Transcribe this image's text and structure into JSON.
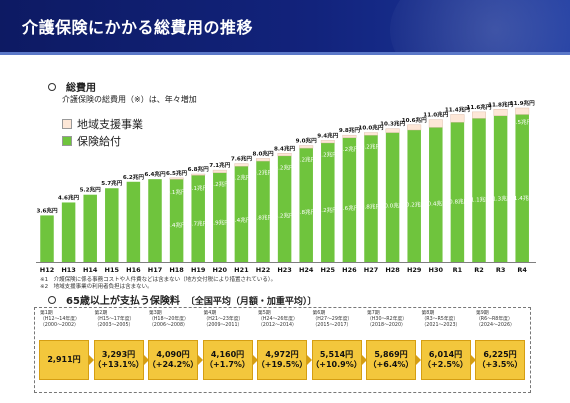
{
  "page_title": "介護保険にかかる総費用の推移",
  "section1": {
    "title": "総費用",
    "subtitle": "介護保険の総費用（※）は、年々増加"
  },
  "legend": [
    {
      "label": "地域支援事業",
      "color": "#fde7d7"
    },
    {
      "label": "保険給付",
      "color": "#6fc43d"
    }
  ],
  "chart_data": {
    "type": "bar",
    "stacked": true,
    "categories": [
      "H12",
      "H13",
      "H14",
      "H15",
      "H16",
      "H17",
      "H18",
      "H19",
      "H20",
      "H21",
      "H22",
      "H23",
      "H24",
      "H25",
      "H26",
      "H27",
      "H28",
      "H29",
      "H30",
      "R1",
      "R2",
      "R3",
      "R4"
    ],
    "total_labels": [
      "3.6兆円",
      "4.6兆円",
      "5.2兆円",
      "5.7兆円",
      "6.2兆円",
      "6.4兆円",
      "6.5兆円",
      "6.8兆円",
      "7.1兆円",
      "7.6兆円",
      "8.0兆円",
      "8.4兆円",
      "9.0兆円",
      "9.4兆円",
      "9.8兆円",
      "10.0兆円",
      "10.3兆円",
      "10.6兆円",
      "11.0兆円",
      "11.4兆円",
      "11.6兆円",
      "11.8兆円",
      "11.9兆円"
    ],
    "series": [
      {
        "name": "保険給付",
        "color": "#6fc43d",
        "values": [
          3.6,
          4.6,
          5.2,
          5.7,
          6.2,
          6.4,
          6.4,
          6.7,
          6.9,
          7.4,
          7.8,
          8.2,
          8.8,
          9.2,
          9.6,
          9.8,
          10.0,
          10.2,
          10.4,
          10.8,
          11.1,
          11.3,
          11.4
        ]
      },
      {
        "name": "地域支援事業",
        "color": "#fde7d7",
        "values": [
          0,
          0,
          0,
          0,
          0,
          0,
          0.1,
          0.1,
          0.2,
          0.2,
          0.2,
          0.2,
          0.2,
          0.2,
          0.2,
          0.2,
          0.3,
          0.4,
          0.6,
          0.6,
          0.5,
          0.5,
          0.5
        ]
      }
    ],
    "segment_labels": {
      "保険給付": [
        "",
        "",
        "",
        "",
        "",
        "",
        "6.4兆円",
        "6.7兆円",
        "6.9兆円",
        "7.4兆円",
        "7.8兆円",
        "8.2兆円",
        "8.8兆円",
        "9.2兆円",
        "9.6兆円",
        "9.8兆円",
        "10.0兆円",
        "10.2兆円",
        "10.4兆円",
        "10.8兆円",
        "11.1兆円",
        "11.3兆円",
        "11.4兆円"
      ],
      "地域支援事業": [
        "",
        "",
        "",
        "",
        "",
        "",
        "0.1兆円",
        "0.1兆円",
        "0.2兆円",
        "0.2兆円",
        "0.2兆円",
        "0.2兆円",
        "0.2兆円",
        "0.2兆円",
        "0.2兆円",
        "0.2兆円",
        "",
        "",
        "",
        "",
        "",
        "",
        "0.5兆円"
      ]
    },
    "ylim": [
      0,
      12.5
    ],
    "grid": false
  },
  "notes": [
    "※1　介護保険に係る事務コストや人件費などは含まない（地方交付税により措置されている）。",
    "※2　地域支援事業の利用者負担は含まない。"
  ],
  "section2": {
    "title": "65歳以上が支払う保険料",
    "title_suffix": "〔全国平均（月額・加重平均）〕"
  },
  "premiums": [
    {
      "period": "第1期",
      "years": "（H12～14年度）",
      "western": "（2000～2002）",
      "amount": "2,911円",
      "change": ""
    },
    {
      "period": "第2期",
      "years": "（H15～17年度）",
      "western": "（2003～2005）",
      "amount": "3,293円",
      "change": "（+13.1%）"
    },
    {
      "period": "第3期",
      "years": "（H18～20年度）",
      "western": "（2006～2008）",
      "amount": "4,090円",
      "change": "（+24.2%）"
    },
    {
      "period": "第4期",
      "years": "（H21～23年度）",
      "western": "（2009～2011）",
      "amount": "4,160円",
      "change": "（+1.7%）"
    },
    {
      "period": "第5期",
      "years": "（H24～26年度）",
      "western": "（2012～2014）",
      "amount": "4,972円",
      "change": "（+19.5%）"
    },
    {
      "period": "第6期",
      "years": "（H27～29年度）",
      "western": "（2015～2017）",
      "amount": "5,514円",
      "change": "（+10.9%）"
    },
    {
      "period": "第7期",
      "years": "（H30～R2年度）",
      "western": "（2018～2020）",
      "amount": "5,869円",
      "change": "（+6.4%）"
    },
    {
      "period": "第8期",
      "years": "（R3～R5年度）",
      "western": "（2021～2023）",
      "amount": "6,014円",
      "change": "（+2.5%）"
    },
    {
      "period": "第9期",
      "years": "（R6～R8年度）",
      "western": "（2024～2026）",
      "amount": "6,225円",
      "change": "（+3.5%）"
    }
  ]
}
